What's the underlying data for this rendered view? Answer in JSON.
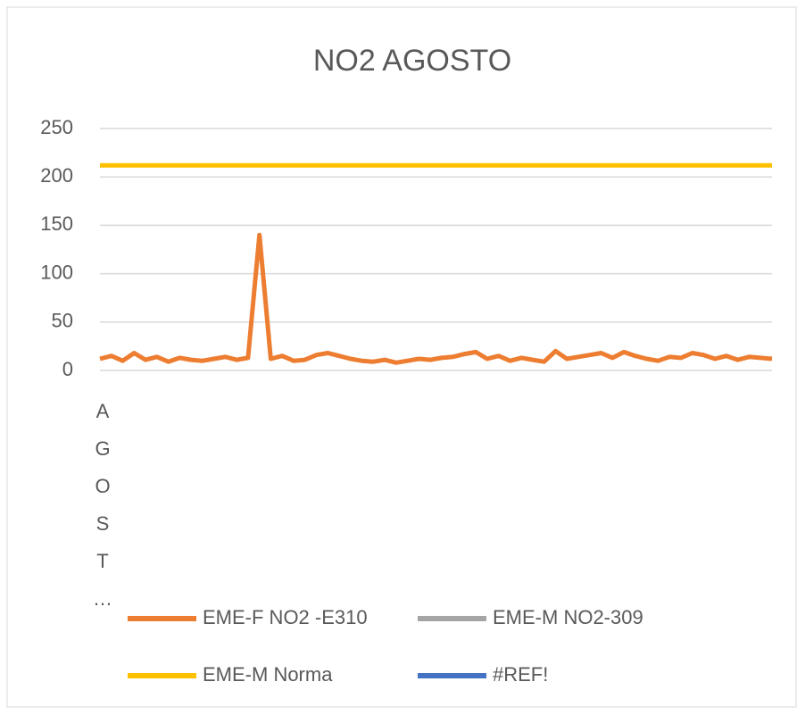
{
  "chart_data": {
    "type": "line",
    "title": "NO2 AGOSTO",
    "categories": [
      "AGOST…",
      null,
      null,
      null,
      null,
      null,
      null,
      null,
      null,
      null,
      null,
      null,
      null,
      null,
      null,
      null,
      null,
      null,
      null,
      null,
      null,
      null,
      null,
      null,
      null,
      null,
      null,
      null,
      null,
      null,
      null,
      null,
      null,
      null,
      null,
      null,
      null,
      null,
      null,
      null,
      null,
      null,
      null,
      null,
      null,
      null,
      null,
      null,
      null,
      null,
      null,
      null,
      null,
      null,
      null,
      null,
      null,
      null,
      null,
      null
    ],
    "series": [
      {
        "name": "EME-F NO2 -E310",
        "color": "#ed7d31",
        "values": [
          12,
          15,
          10,
          18,
          11,
          14,
          9,
          13,
          11,
          10,
          12,
          14,
          11,
          13,
          140,
          12,
          15,
          10,
          11,
          16,
          18,
          15,
          12,
          10,
          9,
          11,
          8,
          10,
          12,
          11,
          13,
          14,
          17,
          19,
          12,
          15,
          10,
          13,
          11,
          9,
          20,
          12,
          14,
          16,
          18,
          13,
          19,
          15,
          12,
          10,
          14,
          13,
          18,
          16,
          12,
          15,
          11,
          14,
          13,
          12
        ]
      },
      {
        "name": "EME-M NO2-309",
        "color": "#a5a5a5",
        "values": [
          null,
          null,
          null,
          null,
          null,
          null,
          null,
          null,
          null,
          null,
          null,
          null,
          null,
          null,
          null,
          null,
          null,
          null,
          null,
          null,
          null,
          null,
          null,
          null,
          null,
          null,
          null,
          null,
          null,
          null,
          null,
          null,
          null,
          null,
          null,
          null,
          null,
          null,
          null,
          null,
          null,
          null,
          null,
          null,
          null,
          null,
          null,
          null,
          null,
          null,
          null,
          null,
          null,
          null,
          null,
          null,
          null,
          null,
          null,
          null
        ]
      },
      {
        "name": "EME-M Norma",
        "color": "#ffc000",
        "values": [
          212,
          212,
          212,
          212,
          212,
          212,
          212,
          212,
          212,
          212,
          212,
          212,
          212,
          212,
          212,
          212,
          212,
          212,
          212,
          212,
          212,
          212,
          212,
          212,
          212,
          212,
          212,
          212,
          212,
          212,
          212,
          212,
          212,
          212,
          212,
          212,
          212,
          212,
          212,
          212,
          212,
          212,
          212,
          212,
          212,
          212,
          212,
          212,
          212,
          212,
          212,
          212,
          212,
          212,
          212,
          212,
          212,
          212,
          212,
          212
        ]
      },
      {
        "name": "#REF!",
        "color": "#4472c4",
        "values": [
          null,
          null,
          null,
          null,
          null,
          null,
          null,
          null,
          null,
          null,
          null,
          null,
          null,
          null,
          null,
          null,
          null,
          null,
          null,
          null,
          null,
          null,
          null,
          null,
          null,
          null,
          null,
          null,
          null,
          null,
          null,
          null,
          null,
          null,
          null,
          null,
          null,
          null,
          null,
          null,
          null,
          null,
          null,
          null,
          null,
          null,
          null,
          null,
          null,
          null,
          null,
          null,
          null,
          null,
          null,
          null,
          null,
          null,
          null,
          null
        ]
      }
    ],
    "ylim": [
      0,
      250
    ],
    "yticks": [
      0,
      50,
      100,
      150,
      200,
      250
    ],
    "grid": true,
    "legend": "bottom"
  }
}
